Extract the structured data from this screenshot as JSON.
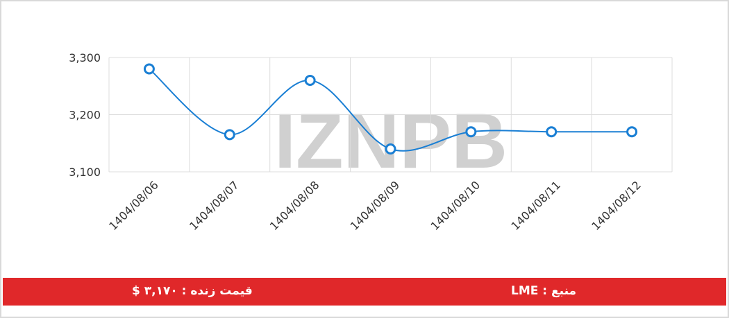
{
  "chart_data": {
    "type": "line",
    "categories": [
      "1404/08/06",
      "1404/08/07",
      "1404/08/08",
      "1404/08/09",
      "1404/08/10",
      "1404/08/11",
      "1404/08/12"
    ],
    "values": [
      3280,
      3165,
      3260,
      3140,
      3170,
      3170,
      3170
    ],
    "color": "#1a7fd4",
    "ylim": [
      3100,
      3300
    ],
    "yticks": [
      {
        "value": 3100,
        "label": "3,100"
      },
      {
        "value": 3200,
        "label": "3,200"
      },
      {
        "value": 3300,
        "label": "3,300"
      }
    ],
    "grid": true
  },
  "watermark": "IZNPB",
  "footer": {
    "live_price": "قیمت زنده : ۳,۱۷۰ $",
    "source": "منبع : LME"
  }
}
